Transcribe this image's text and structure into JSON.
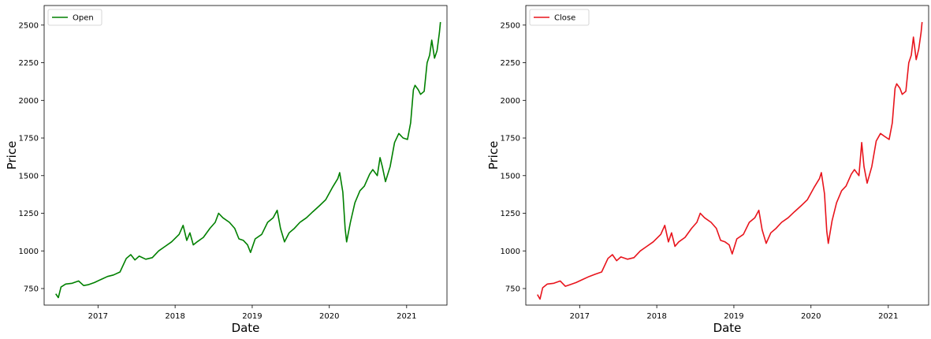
{
  "chart_data": [
    {
      "type": "line",
      "title": "",
      "xlabel": "Date",
      "ylabel": "Price",
      "legend": "top-left",
      "grid": false,
      "xlim": [
        "2016-04-21",
        "2021-07-11"
      ],
      "ylim": [
        640,
        2630
      ],
      "x_ticks": [
        "2017",
        "2018",
        "2019",
        "2020",
        "2021"
      ],
      "y_ticks": [
        750,
        1000,
        1250,
        1500,
        1750,
        2000,
        2250,
        2500
      ],
      "series": [
        {
          "name": "Open",
          "color": "#008000",
          "x": [
            "2016-06-15",
            "2016-06-27",
            "2016-07-10",
            "2016-08-01",
            "2016-09-01",
            "2016-10-01",
            "2016-10-25",
            "2016-11-15",
            "2016-12-15",
            "2017-01-15",
            "2017-02-15",
            "2017-03-15",
            "2017-04-15",
            "2017-05-15",
            "2017-06-05",
            "2017-06-25",
            "2017-07-15",
            "2017-08-15",
            "2017-09-15",
            "2017-10-15",
            "2017-11-15",
            "2017-12-15",
            "2018-01-20",
            "2018-02-08",
            "2018-02-25",
            "2018-03-12",
            "2018-03-28",
            "2018-04-15",
            "2018-05-15",
            "2018-06-15",
            "2018-07-10",
            "2018-07-26",
            "2018-08-15",
            "2018-09-15",
            "2018-10-10",
            "2018-10-30",
            "2018-11-20",
            "2018-12-10",
            "2018-12-24",
            "2019-01-15",
            "2019-02-15",
            "2019-03-15",
            "2019-04-10",
            "2019-04-29",
            "2019-05-15",
            "2019-06-03",
            "2019-06-25",
            "2019-07-20",
            "2019-08-15",
            "2019-09-15",
            "2019-10-15",
            "2019-11-15",
            "2019-12-15",
            "2020-01-15",
            "2020-02-10",
            "2020-02-19",
            "2020-03-05",
            "2020-03-16",
            "2020-03-23",
            "2020-04-10",
            "2020-05-01",
            "2020-05-25",
            "2020-06-15",
            "2020-07-10",
            "2020-07-25",
            "2020-08-15",
            "2020-08-28",
            "2020-09-08",
            "2020-09-23",
            "2020-10-15",
            "2020-11-05",
            "2020-11-25",
            "2020-12-15",
            "2021-01-05",
            "2021-01-20",
            "2021-02-02",
            "2021-02-10",
            "2021-02-25",
            "2021-03-08",
            "2021-03-25",
            "2021-04-08",
            "2021-04-20",
            "2021-04-30",
            "2021-05-13",
            "2021-05-25",
            "2021-06-05",
            "2021-06-10"
          ],
          "values": [
            715,
            690,
            760,
            780,
            785,
            800,
            770,
            775,
            790,
            810,
            830,
            840,
            860,
            950,
            975,
            940,
            965,
            945,
            955,
            1000,
            1030,
            1060,
            1110,
            1170,
            1070,
            1120,
            1040,
            1060,
            1090,
            1150,
            1190,
            1250,
            1220,
            1190,
            1150,
            1080,
            1070,
            1040,
            990,
            1080,
            1110,
            1190,
            1220,
            1270,
            1150,
            1060,
            1120,
            1150,
            1190,
            1220,
            1260,
            1300,
            1340,
            1420,
            1480,
            1520,
            1390,
            1150,
            1060,
            1190,
            1320,
            1400,
            1430,
            1510,
            1540,
            1500,
            1620,
            1560,
            1460,
            1560,
            1720,
            1780,
            1750,
            1740,
            1850,
            2070,
            2100,
            2070,
            2040,
            2060,
            2250,
            2300,
            2400,
            2280,
            2330,
            2450,
            2520
          ]
        },
        {
          "name": "Close",
          "color": "#e8141c",
          "x": [
            "2016-06-15",
            "2016-06-27",
            "2016-07-10",
            "2016-08-01",
            "2016-09-01",
            "2016-10-01",
            "2016-10-25",
            "2016-11-15",
            "2016-12-15",
            "2017-01-15",
            "2017-02-15",
            "2017-03-15",
            "2017-04-15",
            "2017-05-15",
            "2017-06-05",
            "2017-06-25",
            "2017-07-15",
            "2017-08-15",
            "2017-09-15",
            "2017-10-15",
            "2017-11-15",
            "2017-12-15",
            "2018-01-20",
            "2018-02-08",
            "2018-02-25",
            "2018-03-12",
            "2018-03-28",
            "2018-04-15",
            "2018-05-15",
            "2018-06-15",
            "2018-07-10",
            "2018-07-26",
            "2018-08-15",
            "2018-09-15",
            "2018-10-10",
            "2018-10-30",
            "2018-11-20",
            "2018-12-10",
            "2018-12-24",
            "2019-01-15",
            "2019-02-15",
            "2019-03-15",
            "2019-04-10",
            "2019-04-29",
            "2019-05-15",
            "2019-06-03",
            "2019-06-25",
            "2019-07-20",
            "2019-08-15",
            "2019-09-15",
            "2019-10-15",
            "2019-11-15",
            "2019-12-15",
            "2020-01-15",
            "2020-02-10",
            "2020-02-19",
            "2020-03-05",
            "2020-03-16",
            "2020-03-23",
            "2020-04-10",
            "2020-05-01",
            "2020-05-25",
            "2020-06-15",
            "2020-07-10",
            "2020-07-25",
            "2020-08-15",
            "2020-08-28",
            "2020-09-08",
            "2020-09-23",
            "2020-10-15",
            "2020-11-05",
            "2020-11-25",
            "2020-12-15",
            "2021-01-05",
            "2021-01-20",
            "2021-02-02",
            "2021-02-10",
            "2021-02-25",
            "2021-03-08",
            "2021-03-25",
            "2021-04-08",
            "2021-04-20",
            "2021-04-30",
            "2021-05-13",
            "2021-05-25",
            "2021-06-05",
            "2021-06-10"
          ],
          "values": [
            710,
            680,
            755,
            780,
            785,
            800,
            765,
            775,
            790,
            810,
            830,
            845,
            860,
            950,
            975,
            935,
            960,
            945,
            955,
            1000,
            1030,
            1060,
            1110,
            1170,
            1060,
            1120,
            1030,
            1060,
            1090,
            1150,
            1190,
            1250,
            1220,
            1190,
            1150,
            1070,
            1060,
            1040,
            980,
            1080,
            1110,
            1190,
            1220,
            1270,
            1140,
            1050,
            1120,
            1150,
            1190,
            1220,
            1260,
            1300,
            1340,
            1420,
            1480,
            1520,
            1380,
            1130,
            1050,
            1200,
            1320,
            1400,
            1430,
            1510,
            1540,
            1500,
            1720,
            1560,
            1450,
            1560,
            1730,
            1780,
            1760,
            1740,
            1850,
            2080,
            2110,
            2080,
            2040,
            2060,
            2250,
            2300,
            2420,
            2270,
            2340,
            2450,
            2520
          ]
        }
      ]
    }
  ]
}
